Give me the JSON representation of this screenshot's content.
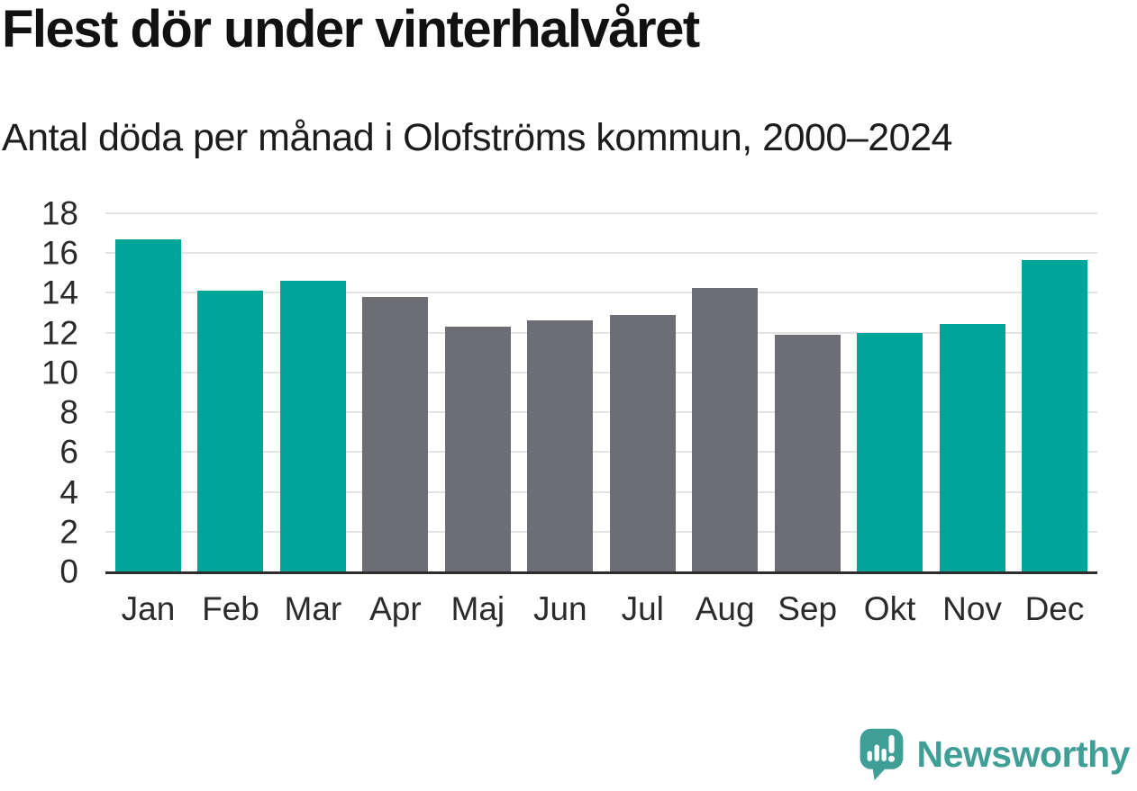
{
  "header": {
    "title": "Flest dör under vinterhalvåret",
    "subtitle": "Antal döda per månad i Olofströms kommun, 2000–2024"
  },
  "chart_data": {
    "type": "bar",
    "title": "Flest dör under vinterhalvåret",
    "subtitle": "Antal döda per månad i Olofströms kommun, 2000–2024",
    "categories": [
      "Jan",
      "Feb",
      "Mar",
      "Apr",
      "Maj",
      "Jun",
      "Jul",
      "Aug",
      "Sep",
      "Okt",
      "Nov",
      "Dec"
    ],
    "values": [
      16.7,
      14.1,
      14.6,
      13.8,
      12.3,
      12.6,
      12.9,
      14.25,
      11.9,
      12.0,
      12.45,
      15.65
    ],
    "bar_colors": [
      "#00a59a",
      "#00a59a",
      "#00a59a",
      "#6d6d74",
      "#6d6d74",
      "#6d6d74",
      "#6d6d74",
      "#6d6d74",
      "#6d6d74",
      "#00a59a",
      "#00a59a",
      "#00a59a"
    ],
    "highlight_color": "#00a59a",
    "base_color": "#6d6d74",
    "highlighted_months": [
      "Jan",
      "Feb",
      "Mar",
      "Okt",
      "Nov",
      "Dec"
    ],
    "xlabel": "",
    "ylabel": "",
    "ylim": [
      0,
      18
    ],
    "yticks": [
      0,
      2,
      4,
      6,
      8,
      10,
      12,
      14,
      16,
      18
    ],
    "grid": true,
    "legend": false
  },
  "branding": {
    "logo_text": "Newsworthy",
    "logo_icon": "speech-bubble-bar-chart-exclamation-icon",
    "logo_color": "#3f9e95"
  },
  "colors": {
    "background": "#ffffff",
    "title": "#111111",
    "subtitle": "#1c1c1c",
    "axis_labels": "#2b2b2b",
    "gridline": "#e4e4e4",
    "axis_line": "#2d2d2d"
  }
}
